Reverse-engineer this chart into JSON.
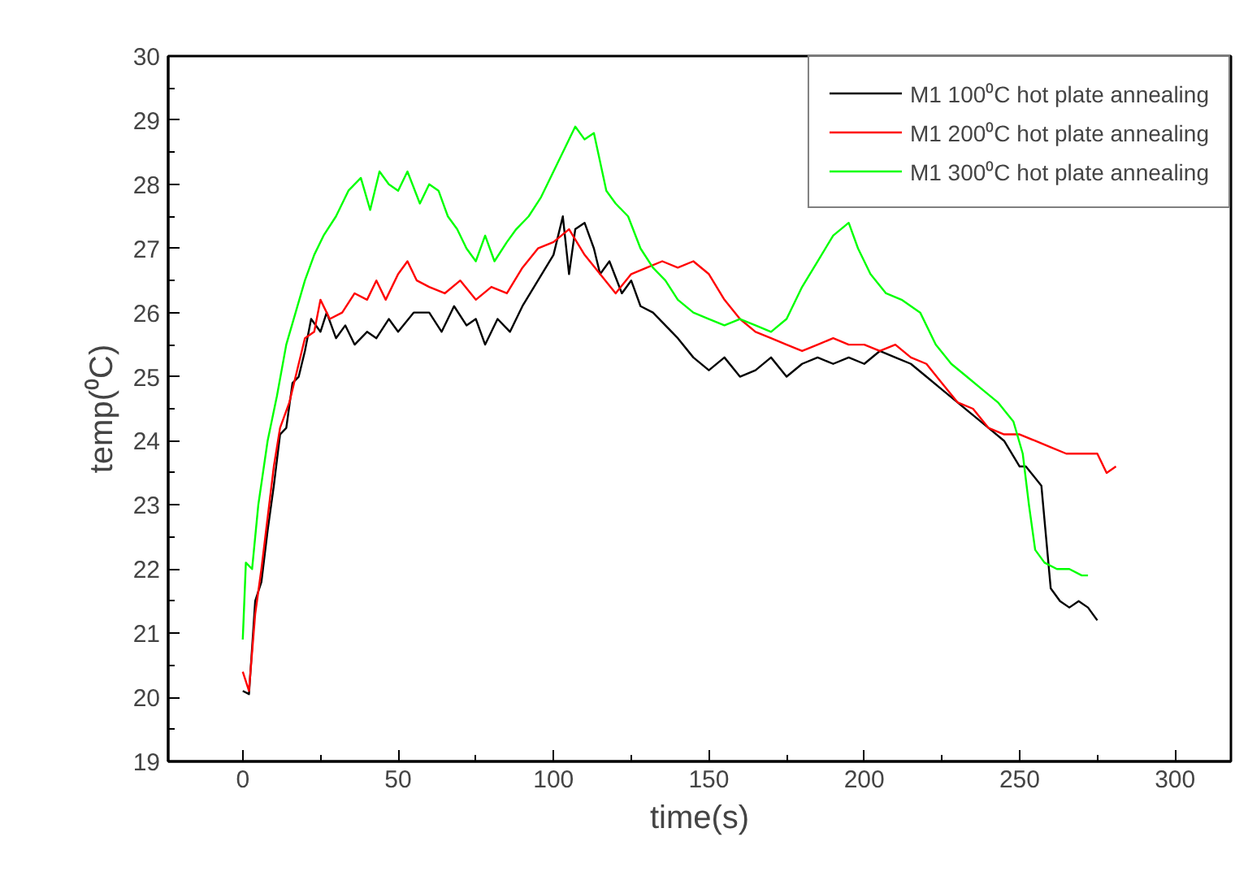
{
  "chart_data": {
    "type": "line",
    "xlabel": "time(s)",
    "ylabel": "temp(⁰C)",
    "xlim": [
      -24,
      318
    ],
    "xticks": [
      0,
      50,
      100,
      150,
      200,
      250,
      300
    ],
    "ylim": [
      19,
      30
    ],
    "yticks": [
      19,
      20,
      21,
      22,
      23,
      24,
      25,
      26,
      27,
      28,
      29,
      30
    ],
    "grid": false,
    "legend": "top right",
    "marker": "none",
    "line_style": "solid",
    "series": [
      {
        "name": "M1 100⁰C hot plate annealing",
        "color": "#000000",
        "x": [
          0,
          2,
          4,
          6,
          8,
          10,
          12,
          14,
          16,
          18,
          20,
          22,
          25,
          27,
          30,
          33,
          36,
          40,
          43,
          47,
          50,
          55,
          60,
          64,
          68,
          72,
          75,
          78,
          82,
          86,
          90,
          95,
          100,
          103,
          105,
          107,
          110,
          113,
          115,
          118,
          122,
          125,
          128,
          132,
          136,
          140,
          145,
          150,
          155,
          160,
          165,
          170,
          175,
          180,
          185,
          190,
          195,
          200,
          205,
          210,
          215,
          220,
          225,
          230,
          235,
          240,
          245,
          250,
          252,
          257,
          260,
          263,
          266,
          269,
          272,
          275
        ],
        "values": [
          20.1,
          20.05,
          21.5,
          21.8,
          22.6,
          23.3,
          24.1,
          24.2,
          24.9,
          25.0,
          25.4,
          25.9,
          25.7,
          26.0,
          25.6,
          25.8,
          25.5,
          25.7,
          25.6,
          25.9,
          25.7,
          26.0,
          26.0,
          25.7,
          26.1,
          25.8,
          25.9,
          25.5,
          25.9,
          25.7,
          26.1,
          26.5,
          26.9,
          27.5,
          26.6,
          27.3,
          27.4,
          27.0,
          26.6,
          26.8,
          26.3,
          26.5,
          26.1,
          26.0,
          25.8,
          25.6,
          25.3,
          25.1,
          25.3,
          25.0,
          25.1,
          25.3,
          25.0,
          25.2,
          25.3,
          25.2,
          25.3,
          25.2,
          25.4,
          25.3,
          25.2,
          25.0,
          24.8,
          24.6,
          24.4,
          24.2,
          24.0,
          23.6,
          23.6,
          23.3,
          21.7,
          21.5,
          21.4,
          21.5,
          21.4,
          21.2
        ]
      },
      {
        "name": "M1 200⁰C hot plate annealing",
        "color": "#ff0000",
        "x": [
          0,
          2,
          4,
          6,
          8,
          10,
          12,
          15,
          18,
          20,
          23,
          25,
          28,
          32,
          36,
          40,
          43,
          46,
          50,
          53,
          56,
          60,
          65,
          70,
          75,
          80,
          85,
          90,
          95,
          100,
          105,
          110,
          115,
          120,
          125,
          130,
          135,
          140,
          145,
          150,
          155,
          160,
          165,
          170,
          175,
          180,
          185,
          190,
          195,
          200,
          205,
          210,
          215,
          220,
          225,
          230,
          235,
          240,
          245,
          250,
          255,
          260,
          265,
          270,
          275,
          278,
          281
        ],
        "values": [
          20.4,
          20.1,
          21.3,
          22.0,
          22.8,
          23.6,
          24.2,
          24.6,
          25.2,
          25.6,
          25.7,
          26.2,
          25.9,
          26.0,
          26.3,
          26.2,
          26.5,
          26.2,
          26.6,
          26.8,
          26.5,
          26.4,
          26.3,
          26.5,
          26.2,
          26.4,
          26.3,
          26.7,
          27.0,
          27.1,
          27.3,
          26.9,
          26.6,
          26.3,
          26.6,
          26.7,
          26.8,
          26.7,
          26.8,
          26.6,
          26.2,
          25.9,
          25.7,
          25.6,
          25.5,
          25.4,
          25.5,
          25.6,
          25.5,
          25.5,
          25.4,
          25.5,
          25.3,
          25.2,
          24.9,
          24.6,
          24.5,
          24.2,
          24.1,
          24.1,
          24.0,
          23.9,
          23.8,
          23.8,
          23.8,
          23.5,
          23.6
        ]
      },
      {
        "name": "M1 300⁰C hot plate annealing",
        "color": "#00ff00",
        "x": [
          0,
          1,
          3,
          5,
          8,
          11,
          14,
          17,
          20,
          23,
          26,
          30,
          34,
          38,
          41,
          44,
          47,
          50,
          53,
          57,
          60,
          63,
          66,
          69,
          72,
          75,
          78,
          81,
          85,
          88,
          92,
          96,
          100,
          104,
          107,
          110,
          113,
          117,
          120,
          124,
          128,
          132,
          136,
          140,
          145,
          150,
          155,
          160,
          165,
          170,
          175,
          180,
          185,
          190,
          195,
          198,
          202,
          207,
          212,
          218,
          223,
          228,
          233,
          238,
          243,
          248,
          251,
          253,
          255,
          258,
          262,
          266,
          270,
          272
        ],
        "values": [
          20.9,
          22.1,
          22.0,
          23.0,
          24.0,
          24.7,
          25.5,
          26.0,
          26.5,
          26.9,
          27.2,
          27.5,
          27.9,
          28.1,
          27.6,
          28.2,
          28.0,
          27.9,
          28.2,
          27.7,
          28.0,
          27.9,
          27.5,
          27.3,
          27.0,
          26.8,
          27.2,
          26.8,
          27.1,
          27.3,
          27.5,
          27.8,
          28.2,
          28.6,
          28.9,
          28.7,
          28.8,
          27.9,
          27.7,
          27.5,
          27.0,
          26.7,
          26.5,
          26.2,
          26.0,
          25.9,
          25.8,
          25.9,
          25.8,
          25.7,
          25.9,
          26.4,
          26.8,
          27.2,
          27.4,
          27.0,
          26.6,
          26.3,
          26.2,
          26.0,
          25.5,
          25.2,
          25.0,
          24.8,
          24.6,
          24.3,
          23.8,
          23.0,
          22.3,
          22.1,
          22.0,
          22.0,
          21.9,
          21.9
        ]
      }
    ]
  }
}
